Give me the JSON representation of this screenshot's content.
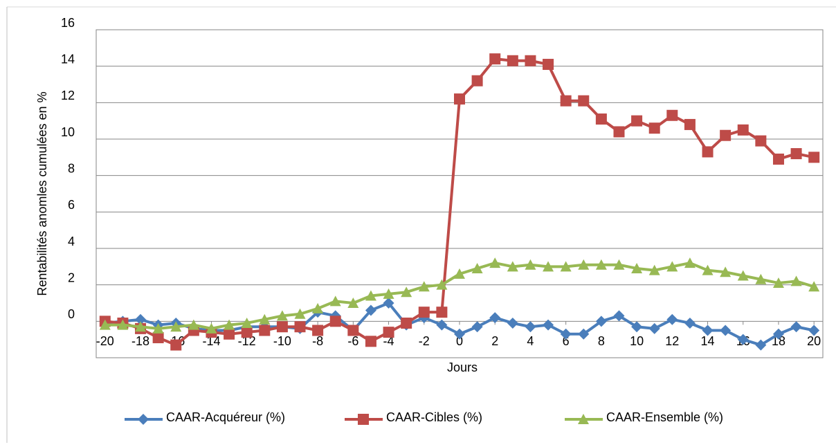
{
  "chart_data": {
    "type": "line",
    "y_label": "Rentabilités anomles cumulées en %",
    "x_label": "Jours",
    "x": [
      -20,
      -19,
      -18,
      -17,
      -16,
      -15,
      -14,
      -13,
      -12,
      -11,
      -10,
      -9,
      -8,
      -7,
      -6,
      -5,
      -4,
      -3,
      -2,
      -1,
      0,
      1,
      2,
      3,
      4,
      5,
      6,
      7,
      8,
      9,
      10,
      11,
      12,
      13,
      14,
      15,
      16,
      17,
      18,
      19,
      20
    ],
    "xlim": [
      -20.5,
      20.5
    ],
    "xticks": [
      -20,
      -18,
      -16,
      -14,
      -12,
      -10,
      -8,
      -6,
      -4,
      -2,
      0,
      2,
      4,
      6,
      8,
      10,
      12,
      14,
      16,
      18,
      20
    ],
    "ylim": [
      -2,
      16
    ],
    "yticks": [
      0,
      2,
      4,
      6,
      8,
      10,
      12,
      14,
      16
    ],
    "grid": true,
    "legend": "bottom",
    "series": [
      {
        "name": "CAAR-Acquéreur (%)",
        "color": "#4a7ebb",
        "marker": "diamond",
        "values": [
          -0.1,
          0.0,
          0.1,
          -0.2,
          -0.1,
          -0.4,
          -0.5,
          -0.5,
          -0.3,
          -0.3,
          -0.3,
          -0.4,
          0.5,
          0.3,
          -0.5,
          0.6,
          1.0,
          -0.2,
          0.2,
          -0.2,
          -0.7,
          -0.3,
          0.2,
          -0.1,
          -0.3,
          -0.2,
          -0.7,
          -0.7,
          0.0,
          0.3,
          -0.3,
          -0.4,
          0.1,
          -0.1,
          -0.5,
          -0.5,
          -1.0,
          -1.3,
          -0.7,
          -0.3,
          -0.5
        ]
      },
      {
        "name": "CAAR-Cibles (%)",
        "color": "#be4b48",
        "marker": "square",
        "values": [
          0.0,
          -0.1,
          -0.4,
          -0.9,
          -1.3,
          -0.5,
          -0.6,
          -0.7,
          -0.6,
          -0.5,
          -0.3,
          -0.3,
          -0.5,
          0.0,
          -0.5,
          -1.1,
          -0.6,
          -0.1,
          0.5,
          0.5,
          12.2,
          13.2,
          14.4,
          14.3,
          14.3,
          14.1,
          12.1,
          12.1,
          11.1,
          10.4,
          11.0,
          10.6,
          11.3,
          10.8,
          9.3,
          10.2,
          10.5,
          9.9,
          8.9,
          9.2,
          9.0
        ]
      },
      {
        "name": "CAAR-Ensemble (%)",
        "color": "#98b954",
        "marker": "triangle",
        "values": [
          -0.2,
          -0.2,
          -0.3,
          -0.4,
          -0.3,
          -0.2,
          -0.4,
          -0.2,
          -0.1,
          0.1,
          0.3,
          0.4,
          0.7,
          1.1,
          1.0,
          1.4,
          1.5,
          1.6,
          1.9,
          2.0,
          2.6,
          2.9,
          3.2,
          3.0,
          3.1,
          3.0,
          3.0,
          3.1,
          3.1,
          3.1,
          2.9,
          2.8,
          3.0,
          3.2,
          2.8,
          2.7,
          2.5,
          2.3,
          2.1,
          2.2,
          1.9
        ]
      }
    ]
  }
}
